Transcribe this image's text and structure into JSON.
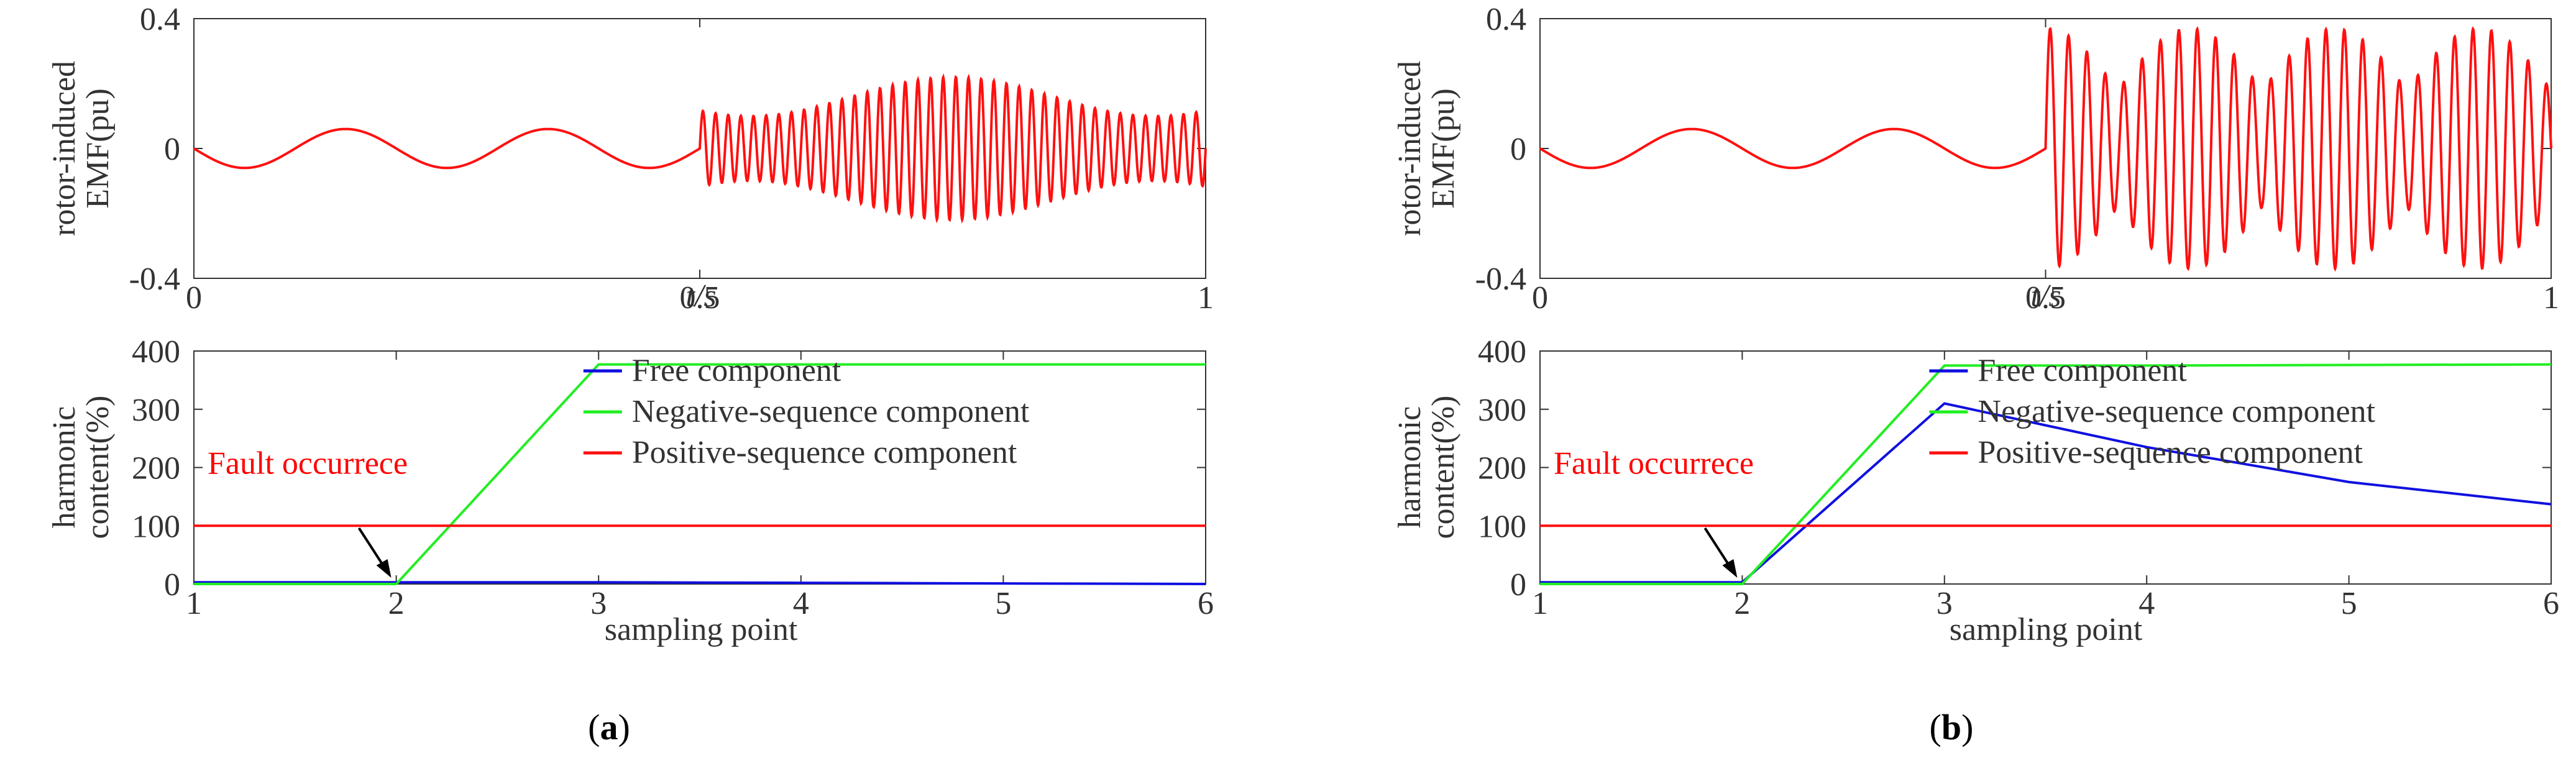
{
  "chart_data": [
    {
      "type": "line",
      "panel": "a-top",
      "xlabel": "t/s",
      "ylabel": [
        "rotor-induced",
        "EMF(pu)"
      ],
      "xlim": [
        0,
        1
      ],
      "ylim": [
        -0.4,
        0.4
      ],
      "xticks": [
        0,
        0.5,
        1
      ],
      "xtick_labels": [
        "0",
        "0.5",
        "1"
      ],
      "yticks": [
        -0.4,
        0,
        0.4
      ],
      "ytick_labels": [
        "-0.4",
        "0",
        "0.4"
      ],
      "grid": false,
      "series": [
        {
          "color": "#ff1010",
          "pre_fault": {
            "x_end": 0.5,
            "amplitude": 0.06,
            "period": 0.2,
            "sign": -1
          },
          "post_fault": {
            "x_start": 0.5,
            "osc_freq": 80,
            "min_amplitude": 0.1,
            "max_amplitude": 0.22,
            "envelope_period": 0.4,
            "envelope_peak_at": 0.75
          }
        }
      ]
    },
    {
      "type": "line",
      "panel": "a-bottom",
      "xlabel": "sampling point",
      "ylabel": [
        "harmonic",
        "content(%)"
      ],
      "xlim": [
        1,
        6
      ],
      "ylim": [
        0,
        400
      ],
      "xticks": [
        1,
        2,
        3,
        4,
        5,
        6
      ],
      "yticks": [
        0,
        100,
        200,
        300,
        400
      ],
      "legend": "top-right",
      "grid": false,
      "annotation": {
        "text": "Fault occurrece",
        "color": "#ff0000",
        "arrow_to": [
          2,
          0
        ]
      },
      "series": [
        {
          "name": "Free component",
          "color": "#1010e0",
          "x": [
            1,
            2,
            3,
            4,
            5,
            6
          ],
          "y": [
            3,
            3,
            3,
            2,
            1,
            0
          ]
        },
        {
          "name": "Negative-sequence component",
          "color": "#22ee22",
          "x": [
            1,
            2,
            3,
            4,
            5,
            6
          ],
          "y": [
            0,
            0,
            377,
            377,
            377,
            377
          ]
        },
        {
          "name": "Positive-sequence component",
          "color": "#ff1010",
          "x": [
            1,
            2,
            3,
            4,
            5,
            6
          ],
          "y": [
            100,
            100,
            100,
            100,
            100,
            100
          ]
        }
      ]
    },
    {
      "type": "line",
      "panel": "b-top",
      "xlabel": "t/s",
      "ylabel": [
        "rotor-induced",
        "EMF(pu)"
      ],
      "xlim": [
        0,
        1
      ],
      "ylim": [
        -0.4,
        0.4
      ],
      "xticks": [
        0,
        0.5,
        1
      ],
      "xtick_labels": [
        "0",
        "0.5",
        "1"
      ],
      "yticks": [
        -0.4,
        0,
        0.4
      ],
      "ytick_labels": [
        "-0.4",
        "0",
        "0.4"
      ],
      "grid": false,
      "series": [
        {
          "color": "#ff1010",
          "pre_fault": {
            "x_end": 0.5,
            "amplitude": 0.06,
            "period": 0.2,
            "sign": -1
          },
          "post_fault": {
            "x_start": 0.5,
            "osc_freq": 55,
            "min_amplitude": 0.18,
            "max_amplitude": 0.37,
            "beat_freq": 7
          }
        }
      ]
    },
    {
      "type": "line",
      "panel": "b-bottom",
      "xlabel": "sampling point",
      "ylabel": [
        "harmonic",
        "content(%)"
      ],
      "xlim": [
        1,
        6
      ],
      "ylim": [
        0,
        400
      ],
      "xticks": [
        1,
        2,
        3,
        4,
        5,
        6
      ],
      "yticks": [
        0,
        100,
        200,
        300,
        400
      ],
      "legend": "top-right",
      "grid": false,
      "annotation": {
        "text": "Fault occurrece",
        "color": "#ff0000",
        "arrow_to": [
          2,
          0
        ]
      },
      "series": [
        {
          "name": "Free component",
          "color": "#1010e0",
          "x": [
            1,
            2,
            3,
            4,
            5,
            6
          ],
          "y": [
            3,
            3,
            310,
            235,
            175,
            137
          ]
        },
        {
          "name": "Negative-sequence component",
          "color": "#22ee22",
          "x": [
            1,
            2,
            3,
            4,
            5,
            6
          ],
          "y": [
            0,
            0,
            375,
            375,
            376,
            377
          ]
        },
        {
          "name": "Positive-sequence component",
          "color": "#ff1010",
          "x": [
            1,
            2,
            3,
            4,
            5,
            6
          ],
          "y": [
            100,
            100,
            100,
            100,
            100,
            100
          ]
        }
      ]
    }
  ],
  "captions": {
    "a": "(a)",
    "b": "(b)"
  }
}
